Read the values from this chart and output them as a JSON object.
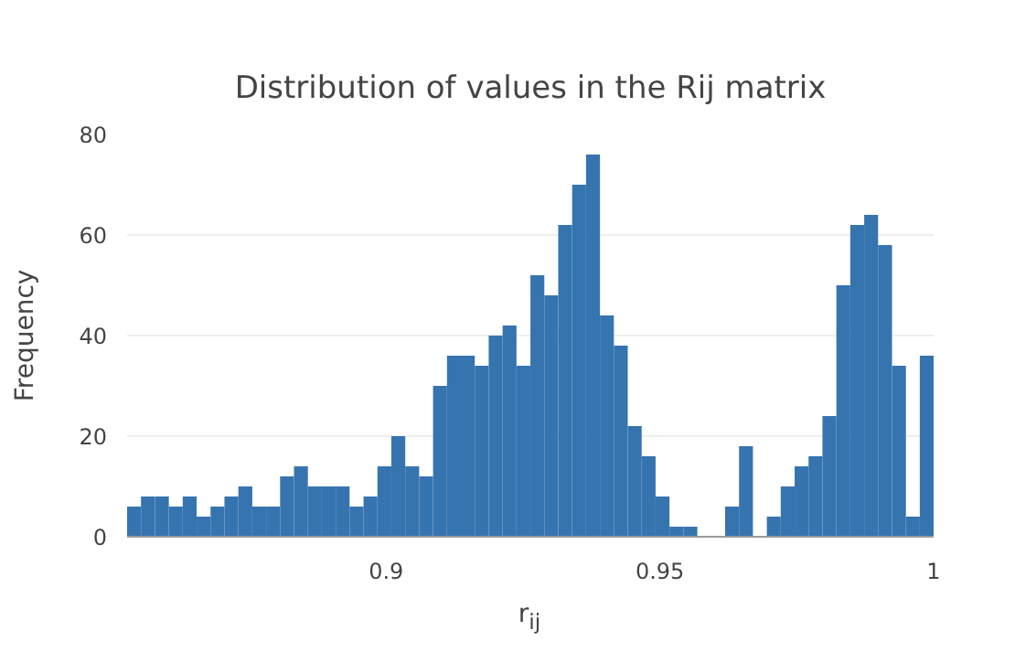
{
  "chart_data": {
    "type": "histogram",
    "title": "Distribution of values in the Rij matrix",
    "xlabel": "r$_{ij}$",
    "ylabel": "Frequency",
    "bins": [
      0.8527,
      0.85524,
      0.85778,
      0.86032,
      0.86286,
      0.8654,
      0.86794,
      0.87048,
      0.87302,
      0.87556,
      0.8781,
      0.88064,
      0.88318,
      0.88572,
      0.88826,
      0.8908,
      0.89334,
      0.89588,
      0.89842,
      0.90096,
      0.9035,
      0.90604,
      0.90858,
      0.91112,
      0.91366,
      0.9162,
      0.91874,
      0.92128,
      0.92382,
      0.92636,
      0.9289,
      0.93144,
      0.93398,
      0.93652,
      0.93906,
      0.9416,
      0.94414,
      0.94668,
      0.94922,
      0.95176,
      0.9543,
      0.95684,
      0.95938,
      0.96192,
      0.96446,
      0.967,
      0.96954,
      0.97208,
      0.97462,
      0.97716,
      0.9797,
      0.98224,
      0.98478,
      0.98732,
      0.98986,
      0.9924,
      0.99494,
      0.99748,
      1.0
    ],
    "values": [
      6,
      8,
      8,
      6,
      8,
      4,
      6,
      8,
      10,
      6,
      6,
      12,
      14,
      10,
      10,
      10,
      6,
      8,
      14,
      20,
      14,
      12,
      30,
      36,
      36,
      34,
      40,
      42,
      34,
      52,
      48,
      62,
      70,
      76,
      44,
      38,
      22,
      16,
      8,
      2,
      2,
      0,
      0,
      6,
      18,
      0,
      4,
      10,
      14,
      16,
      24,
      50,
      62,
      64,
      58,
      34,
      4,
      36
    ],
    "color": "#3674b0",
    "xlim": [
      0.8527,
      1.0
    ],
    "xticks": [
      0.9,
      0.95,
      1
    ],
    "ylim": [
      0,
      80
    ],
    "yticks": [
      0,
      20,
      40,
      60,
      80
    ],
    "grid": "y"
  }
}
